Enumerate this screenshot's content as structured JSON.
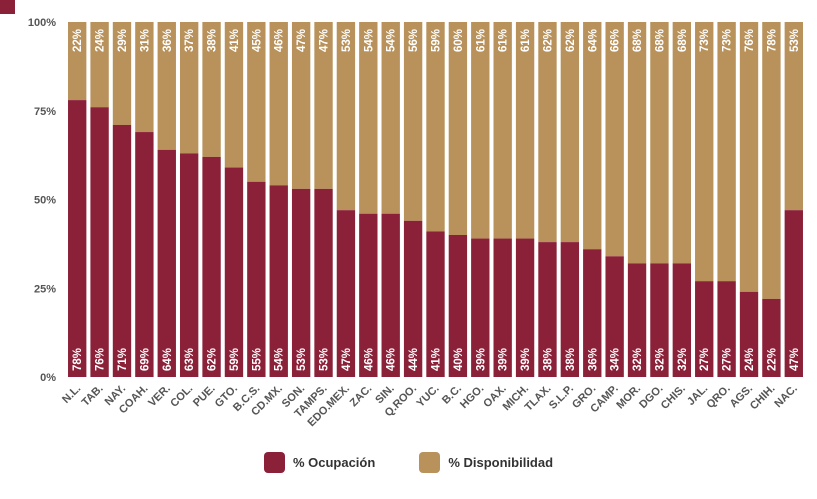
{
  "chart_data": {
    "type": "bar",
    "stacked": true,
    "categories": [
      "N.L.",
      "TAB.",
      "NAY.",
      "COAH.",
      "VER.",
      "COL.",
      "PUE.",
      "GTO.",
      "B.C.S.",
      "CD.MX.",
      "SON.",
      "TAMPS.",
      "EDO.MEX.",
      "ZAC.",
      "SIN.",
      "Q.ROO.",
      "YUC.",
      "B.C.",
      "HGO.",
      "OAX.",
      "MICH.",
      "TLAX.",
      "S.L.P.",
      "GRO.",
      "CAMP.",
      "MOR.",
      "DGO.",
      "CHIS.",
      "JAL.",
      "QRO.",
      "AGS.",
      "CHIH.",
      "NAC."
    ],
    "series": [
      {
        "name": "% Ocupación",
        "color": "#8b2139",
        "values": [
          78,
          76,
          71,
          69,
          64,
          63,
          62,
          59,
          55,
          54,
          53,
          53,
          47,
          46,
          46,
          44,
          41,
          40,
          39,
          39,
          39,
          38,
          38,
          36,
          34,
          32,
          32,
          32,
          27,
          27,
          24,
          22,
          47
        ],
        "labels": [
          "78%",
          "76%",
          "71%",
          "69%",
          "64%",
          "63%",
          "62%",
          "59%",
          "55%",
          "54%",
          "53%",
          "53%",
          "47%",
          "46%",
          "46%",
          "44%",
          "41%",
          "40%",
          "39%",
          "39%",
          "39%",
          "38%",
          "38%",
          "36%",
          "34%",
          "32%",
          "32%",
          "32%",
          "27%",
          "27%",
          "24%",
          "22%",
          "47%"
        ]
      },
      {
        "name": "% Disponibilidad",
        "color": "#b8925a",
        "values": [
          22,
          24,
          29,
          31,
          36,
          37,
          38,
          41,
          45,
          46,
          47,
          47,
          53,
          54,
          54,
          56,
          59,
          60,
          61,
          61,
          61,
          62,
          62,
          64,
          66,
          68,
          68,
          68,
          73,
          73,
          76,
          78,
          53
        ],
        "labels": [
          "22%",
          "24%",
          "29%",
          "31%",
          "36%",
          "37%",
          "38%",
          "41%",
          "45%",
          "46%",
          "47%",
          "47%",
          "53%",
          "54%",
          "54%",
          "56%",
          "59%",
          "60%",
          "61%",
          "61%",
          "61%",
          "62%",
          "62%",
          "64%",
          "66%",
          "68%",
          "68%",
          "68%",
          "73%",
          "73%",
          "76%",
          "78%",
          "53%"
        ]
      }
    ],
    "ylim": [
      0,
      100
    ],
    "yticks": [
      0,
      25,
      50,
      75,
      100
    ],
    "ytick_labels": [
      "0%",
      "25%",
      "50%",
      "75%",
      "100%"
    ],
    "legend_position": "bottom",
    "grid": false
  }
}
